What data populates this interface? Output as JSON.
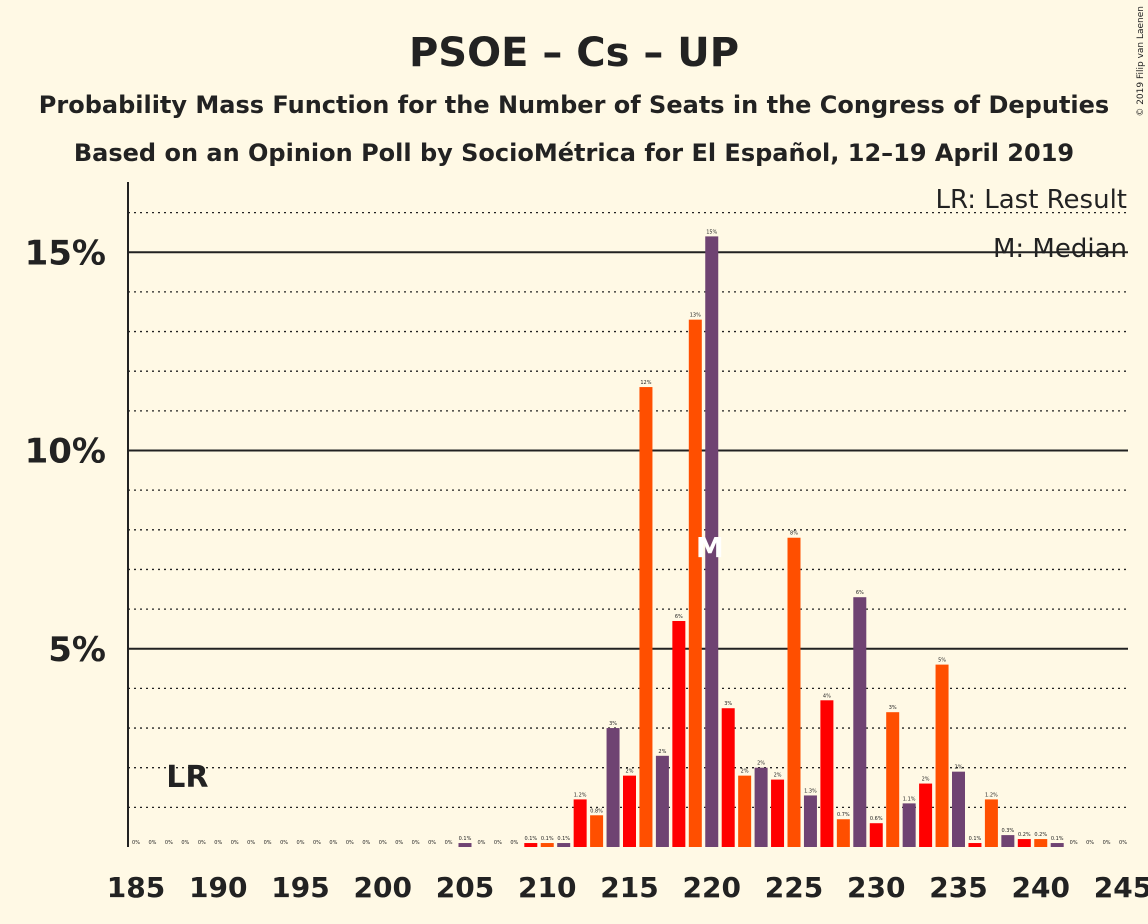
{
  "copyright": "© 2019 Filip van Laenen",
  "chart_data": {
    "type": "bar",
    "title": "PSOE – Cs – UP",
    "subtitle": "Probability Mass Function for the Number of Seats in the Congress of Deputies",
    "subtitle2": "Based on an Opinion Poll by SocioMétrica for El Español, 12–19 April 2019",
    "legend": {
      "last_result": "LR: Last Result",
      "median": "M: Median",
      "placement": "top-right"
    },
    "last_result_label": "LR",
    "last_result_seats": 188,
    "median_label": "M",
    "median_seats": 220,
    "ylim": [
      0,
      16.5
    ],
    "yticks": [
      {
        "value": 5,
        "label": "5%"
      },
      {
        "value": 10,
        "label": "10%"
      },
      {
        "value": 15,
        "label": "15%"
      }
    ],
    "xlim": [
      185,
      245
    ],
    "xticks": [
      185,
      190,
      195,
      200,
      205,
      210,
      215,
      220,
      225,
      230,
      235,
      240,
      245
    ],
    "colors": [
      "#FF0000",
      "#FF4F00",
      "#6F4372"
    ],
    "bars": [
      {
        "x": 185,
        "value": 0,
        "label": "0%"
      },
      {
        "x": 186,
        "value": 0,
        "label": "0%"
      },
      {
        "x": 187,
        "value": 0,
        "label": "0%"
      },
      {
        "x": 188,
        "value": 0,
        "label": "0%"
      },
      {
        "x": 189,
        "value": 0,
        "label": "0%"
      },
      {
        "x": 190,
        "value": 0,
        "label": "0%"
      },
      {
        "x": 191,
        "value": 0,
        "label": "0%"
      },
      {
        "x": 192,
        "value": 0,
        "label": "0%"
      },
      {
        "x": 193,
        "value": 0,
        "label": "0%"
      },
      {
        "x": 194,
        "value": 0,
        "label": "0%"
      },
      {
        "x": 195,
        "value": 0,
        "label": "0%"
      },
      {
        "x": 196,
        "value": 0,
        "label": "0%"
      },
      {
        "x": 197,
        "value": 0,
        "label": "0%"
      },
      {
        "x": 198,
        "value": 0,
        "label": "0%"
      },
      {
        "x": 199,
        "value": 0,
        "label": "0%"
      },
      {
        "x": 200,
        "value": 0,
        "label": "0%"
      },
      {
        "x": 201,
        "value": 0,
        "label": "0%"
      },
      {
        "x": 202,
        "value": 0,
        "label": "0%"
      },
      {
        "x": 203,
        "value": 0,
        "label": "0%"
      },
      {
        "x": 204,
        "value": 0,
        "label": "0%"
      },
      {
        "x": 205,
        "value": 0.1,
        "label": "0.1%"
      },
      {
        "x": 206,
        "value": 0,
        "label": "0%"
      },
      {
        "x": 207,
        "value": 0,
        "label": "0%"
      },
      {
        "x": 208,
        "value": 0,
        "label": "0%"
      },
      {
        "x": 209,
        "value": 0.1,
        "label": "0.1%"
      },
      {
        "x": 210,
        "value": 0.1,
        "label": "0.1%"
      },
      {
        "x": 211,
        "value": 0.1,
        "label": "0.1%"
      },
      {
        "x": 212,
        "value": 1.2,
        "label": "1.2%"
      },
      {
        "x": 213,
        "value": 0.8,
        "label": "0.8%"
      },
      {
        "x": 214,
        "value": 3.0,
        "label": "3%"
      },
      {
        "x": 215,
        "value": 1.8,
        "label": "2%"
      },
      {
        "x": 216,
        "value": 11.6,
        "label": "12%"
      },
      {
        "x": 217,
        "value": 2.3,
        "label": "2%"
      },
      {
        "x": 218,
        "value": 5.7,
        "label": "6%"
      },
      {
        "x": 219,
        "value": 13.3,
        "label": "13%"
      },
      {
        "x": 220,
        "value": 15.4,
        "label": "15%"
      },
      {
        "x": 221,
        "value": 3.5,
        "label": "3%"
      },
      {
        "x": 222,
        "value": 1.8,
        "label": "2%"
      },
      {
        "x": 223,
        "value": 2.0,
        "label": "2%"
      },
      {
        "x": 224,
        "value": 1.7,
        "label": "2%"
      },
      {
        "x": 225,
        "value": 7.8,
        "label": "8%"
      },
      {
        "x": 226,
        "value": 1.3,
        "label": "1.3%"
      },
      {
        "x": 227,
        "value": 3.7,
        "label": "4%"
      },
      {
        "x": 228,
        "value": 0.7,
        "label": "0.7%"
      },
      {
        "x": 229,
        "value": 6.3,
        "label": "6%"
      },
      {
        "x": 230,
        "value": 0.6,
        "label": "0.6%"
      },
      {
        "x": 231,
        "value": 3.4,
        "label": "3%"
      },
      {
        "x": 232,
        "value": 1.1,
        "label": "1.1%"
      },
      {
        "x": 233,
        "value": 1.6,
        "label": "2%"
      },
      {
        "x": 234,
        "value": 4.6,
        "label": "5%"
      },
      {
        "x": 235,
        "value": 1.9,
        "label": "2%"
      },
      {
        "x": 236,
        "value": 0.1,
        "label": "0.1%"
      },
      {
        "x": 237,
        "value": 1.2,
        "label": "1.2%"
      },
      {
        "x": 238,
        "value": 0.3,
        "label": "0.3%"
      },
      {
        "x": 239,
        "value": 0.2,
        "label": "0.2%"
      },
      {
        "x": 240,
        "value": 0.2,
        "label": "0.2%"
      },
      {
        "x": 241,
        "value": 0.1,
        "label": "0.1%"
      },
      {
        "x": 242,
        "value": 0,
        "label": "0%"
      },
      {
        "x": 243,
        "value": 0,
        "label": "0%"
      },
      {
        "x": 244,
        "value": 0,
        "label": "0%"
      },
      {
        "x": 245,
        "value": 0,
        "label": "0%"
      }
    ]
  }
}
